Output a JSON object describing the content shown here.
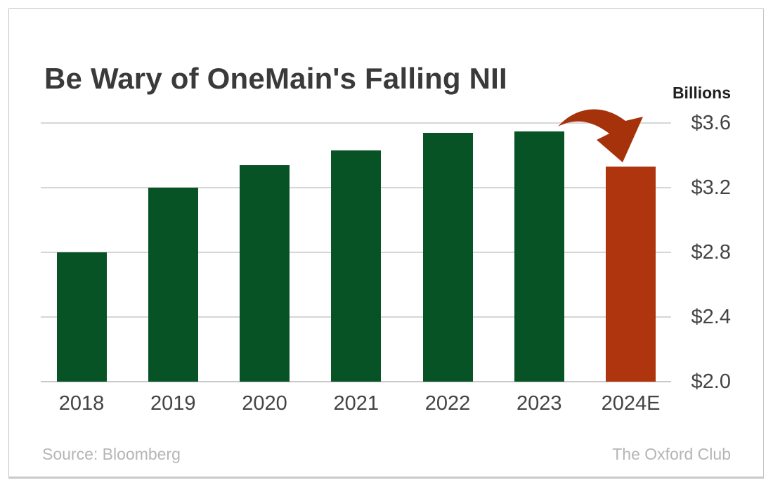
{
  "title": "Be Wary of OneMain's Falling NII",
  "axis_unit_label": "Billions",
  "footer": {
    "source": "Source: Bloomberg",
    "attribution": "The Oxford Club"
  },
  "colors": {
    "bar_green": "#075326",
    "bar_red": "#AE350E",
    "arrow_red": "#A5320A",
    "grid": "#d6d6d6",
    "baseline": "#c9c9c9",
    "title_text": "#3a3a3a",
    "unit_text": "#1f1f1f",
    "axis_text": "#444444",
    "muted_text": "#b5b5b5"
  },
  "chart_data": {
    "type": "bar",
    "title": "Be Wary of OneMain's Falling NII",
    "unit": "Billions",
    "categories": [
      "2018",
      "2019",
      "2020",
      "2021",
      "2022",
      "2023",
      "2024E"
    ],
    "values": [
      2.8,
      3.2,
      3.34,
      3.43,
      3.54,
      3.55,
      3.33
    ],
    "bar_color_keys": [
      "bar_green",
      "bar_green",
      "bar_green",
      "bar_green",
      "bar_green",
      "bar_green",
      "bar_red"
    ],
    "ylim": [
      2.0,
      3.6
    ],
    "yticks": [
      2.0,
      2.4,
      2.8,
      3.2,
      3.6
    ],
    "ytick_labels": [
      "$2.0",
      "$2.4",
      "$2.8",
      "$3.2",
      "$3.6"
    ],
    "xlabel": "",
    "ylabel": "Billions",
    "legend": "none",
    "grid": "horizontal",
    "annotation": "curved red arrow falling from top of 2023 bar down to top of 2024E bar"
  }
}
